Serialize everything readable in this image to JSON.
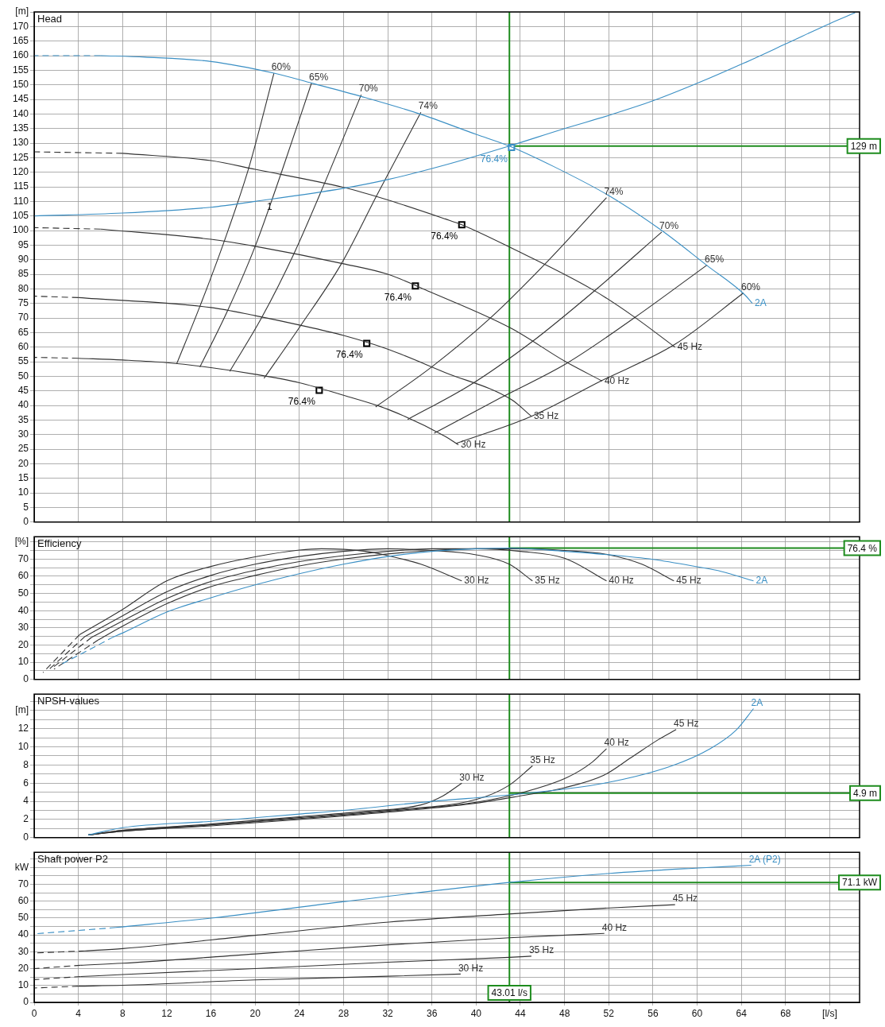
{
  "chart_data": [
    {
      "type": "line",
      "title": "Head",
      "xlim": [
        0,
        74.7
      ],
      "xticks": [
        0,
        4,
        8,
        12,
        16,
        20,
        24,
        28,
        32,
        36,
        40,
        44,
        48,
        52,
        56,
        60,
        64,
        68,
        72
      ],
      "ylim": [
        0,
        175
      ],
      "yticks": [
        0,
        5,
        10,
        15,
        20,
        25,
        30,
        35,
        40,
        45,
        50,
        55,
        60,
        65,
        70,
        75,
        80,
        85,
        90,
        95,
        100,
        105,
        110,
        115,
        120,
        125,
        130,
        135,
        140,
        145,
        150,
        155,
        160,
        165,
        170,
        {
          "value": 175,
          "label": "[m]"
        }
      ],
      "grid": true,
      "legend": false,
      "tick_labels": "y",
      "marker": "none",
      "series": [
        {
          "name": "2A",
          "color": "#3a8fc4",
          "x": [
            65,
            64.3,
            60.9,
            56.8,
            52,
            47,
            43,
            40,
            34.9,
            29.6,
            25.2,
            21.7,
            16,
            10,
            6
          ],
          "values": [
            75,
            78,
            88,
            100,
            112,
            122,
            129,
            133,
            140,
            146,
            150.5,
            154,
            158,
            159.5,
            160
          ]
        },
        {
          "color": "#3a8fc4",
          "line_style": "dashed",
          "x": [
            6,
            0
          ],
          "values": [
            160,
            160
          ]
        },
        {
          "color": "#3a8fc4",
          "x": [
            0,
            8,
            16,
            20,
            28,
            32,
            37.2,
            43,
            48,
            52,
            56,
            60,
            64.2,
            68,
            72,
            74.3
          ],
          "values": [
            105,
            106,
            108,
            110,
            114.5,
            117.5,
            122.5,
            129,
            135,
            139.5,
            144.5,
            150.5,
            157.4,
            164,
            171,
            174.7
          ]
        },
        {
          "name": "45 Hz",
          "color": "#333333",
          "x": [
            58,
            54.3,
            50.6,
            43.2,
            38.7,
            37.2,
            32,
            28,
            20,
            16,
            8
          ],
          "values": [
            60,
            70.4,
            79.6,
            94,
            102,
            104,
            110.5,
            114.8,
            121,
            124,
            126.5
          ]
        },
        {
          "color": "#333333",
          "line_style": "dashed",
          "x": [
            8,
            0
          ],
          "values": [
            126.5,
            127
          ]
        },
        {
          "name": "40 Hz",
          "color": "#333333",
          "x": [
            51.4,
            48.1,
            43.2,
            35.8,
            32,
            28,
            20,
            16,
            6
          ],
          "values": [
            48.4,
            55,
            66.4,
            79,
            85,
            88.6,
            94.6,
            97,
            100.5
          ]
        },
        {
          "color": "#333333",
          "line_style": "dashed",
          "x": [
            6,
            0
          ],
          "values": [
            100.5,
            101
          ]
        },
        {
          "name": "35 Hz",
          "color": "#333333",
          "x": [
            45,
            43.2,
            37.2,
            32,
            28,
            24,
            20,
            16,
            4
          ],
          "values": [
            36.3,
            42,
            51.3,
            59.3,
            64,
            67.6,
            70.8,
            73.6,
            77
          ]
        },
        {
          "color": "#333333",
          "line_style": "dashed",
          "x": [
            4,
            0
          ],
          "values": [
            77,
            77.5
          ]
        },
        {
          "name": "30 Hz",
          "color": "#333333",
          "x": [
            38.4,
            37.2,
            32,
            28,
            24,
            20,
            16,
            12,
            8,
            4
          ],
          "values": [
            26.5,
            29.4,
            38.7,
            43.5,
            47.8,
            50.7,
            53,
            54.7,
            55.6,
            56.2
          ]
        },
        {
          "color": "#333333",
          "line_style": "dashed",
          "x": [
            4,
            0
          ],
          "values": [
            56.2,
            56.5
          ]
        },
        {
          "name": "60%",
          "color": "#333333",
          "x": [
            21.7,
            19.5,
            17.2,
            15,
            12.9
          ],
          "values": [
            154,
            122.5,
            96.3,
            74,
            54.3
          ]
        },
        {
          "name": "65%",
          "color": "#333333",
          "x": [
            25.1,
            22.4,
            20,
            17.5,
            15
          ],
          "values": [
            150.6,
            120.2,
            94.6,
            72.5,
            53.2
          ]
        },
        {
          "name": "70%",
          "color": "#333333",
          "x": [
            29.6,
            26.4,
            23.5,
            20.6,
            17.7
          ],
          "values": [
            146.6,
            117.3,
            92,
            70.2,
            51.7
          ]
        },
        {
          "name": "74%",
          "color": "#333333",
          "x": [
            35,
            31,
            27.8,
            24.1,
            20.8
          ],
          "values": [
            140.6,
            112,
            88.6,
            67.3,
            49.3
          ]
        },
        {
          "name": "74%",
          "color": "#333333",
          "x": [
            51.8,
            46.3,
            41.2,
            36,
            30.9
          ],
          "values": [
            111.3,
            88.8,
            69.7,
            53.3,
            39.5
          ]
        },
        {
          "name": "70%",
          "color": "#333333",
          "x": [
            56.8,
            50.7,
            45,
            39.5,
            33.8
          ],
          "values": [
            99.5,
            79.3,
            61.7,
            47.1,
            35.2
          ]
        },
        {
          "name": "65%",
          "color": "#333333",
          "x": [
            60.9,
            54.4,
            48.3,
            42.2,
            36.2
          ],
          "values": [
            88.2,
            70.3,
            54.7,
            42.6,
            30.5
          ]
        },
        {
          "name": "60%",
          "color": "#333333",
          "x": [
            64.2,
            58,
            51.3,
            45,
            38.2
          ],
          "values": [
            78.6,
            61,
            48.4,
            36.3,
            27
          ]
        },
        {
          "type": "scatter",
          "marker": "square",
          "color": "#000000",
          "x": [
            38.7,
            34.5,
            30.1,
            25.8
          ],
          "values": [
            102,
            81,
            61.3,
            45.2
          ]
        },
        {
          "type": "scatter",
          "marker": "square",
          "color": "#3a8fc4",
          "x": [
            43.2
          ],
          "values": [
            128.5
          ]
        }
      ],
      "annotations": [
        {
          "text": "76.4%",
          "x": 38.7,
          "y": 102
        },
        {
          "text": "76.4%",
          "x": 34.5,
          "y": 81
        },
        {
          "text": "76.4%",
          "x": 30.1,
          "y": 61.3
        },
        {
          "text": "76.4%",
          "x": 25.8,
          "y": 45.2
        },
        {
          "text": "76.4%",
          "x": 43.2,
          "y": 128.5
        },
        {
          "text": "1",
          "x": 21.9,
          "y": 112
        }
      ],
      "ref_lines": [
        {
          "axis": "x",
          "value": 43.01,
          "color": "#1e8c1e"
        },
        {
          "axis": "y",
          "value": 129,
          "label": "129 m",
          "color": "#1e8c1e"
        }
      ]
    },
    {
      "type": "line",
      "title": "Efficiency",
      "xlim": [
        0,
        74.7
      ],
      "xticks": [
        0,
        4,
        8,
        12,
        16,
        20,
        24,
        28,
        32,
        36,
        40,
        44,
        48,
        52,
        56,
        60,
        64,
        68,
        72
      ],
      "ylim": [
        0,
        83
      ],
      "yticks": [
        0,
        {
          "value": 5,
          "label": null
        },
        10,
        {
          "value": 15,
          "label": null
        },
        20,
        {
          "value": 25,
          "label": null
        },
        30,
        {
          "value": 35,
          "label": null
        },
        40,
        {
          "value": 45,
          "label": null
        },
        50,
        {
          "value": 55,
          "label": null
        },
        60,
        {
          "value": 65,
          "label": null
        },
        70,
        {
          "value": 75,
          "label": null
        },
        {
          "value": 80,
          "label": "[%]"
        }
      ],
      "grid": true,
      "legend": false,
      "tick_labels": "y",
      "marker": "none",
      "series": [
        {
          "name": "2A",
          "color": "#3a8fc4",
          "x": [
            65.1,
            62.2,
            60,
            56,
            52,
            48,
            43,
            40,
            36,
            32,
            28,
            24,
            20,
            16,
            12,
            8,
            7.2
          ],
          "values": [
            57.3,
            62.8,
            65.5,
            69.8,
            72.5,
            74.5,
            76.4,
            76,
            74.5,
            71.5,
            67,
            61.5,
            55,
            47.5,
            39.2,
            27,
            24.8
          ]
        },
        {
          "color": "#3a8fc4",
          "line_style": "dashed",
          "x": [
            7.2,
            2.5
          ],
          "values": [
            24.8,
            9
          ]
        },
        {
          "name": "45 Hz",
          "color": "#333333",
          "x": [
            57.9,
            55,
            52,
            48,
            44,
            40,
            36,
            32,
            28,
            24,
            20,
            16,
            12,
            8,
            5.8
          ],
          "values": [
            57.3,
            67,
            72.5,
            75,
            76,
            76,
            75,
            73,
            70,
            66,
            60.5,
            54,
            44,
            31,
            23
          ]
        },
        {
          "color": "#333333",
          "line_style": "dashed",
          "x": [
            5.8,
            1.8
          ],
          "values": [
            23,
            6
          ]
        },
        {
          "name": "40 Hz",
          "color": "#333333",
          "x": [
            51.8,
            48,
            44,
            40,
            36,
            32,
            28,
            24,
            20,
            16,
            12,
            8,
            5.2
          ],
          "values": [
            57.3,
            70.5,
            74.5,
            76,
            76,
            74.5,
            72,
            68.5,
            63.5,
            57,
            47,
            34,
            24.5
          ]
        },
        {
          "color": "#333333",
          "line_style": "dashed",
          "x": [
            5.2,
            1.5
          ],
          "values": [
            24.5,
            6
          ]
        },
        {
          "name": "35 Hz",
          "color": "#333333",
          "x": [
            45.1,
            43,
            40,
            36,
            32,
            28,
            24,
            20,
            16,
            12,
            8,
            4.6
          ],
          "values": [
            57.3,
            67,
            72.5,
            75,
            76,
            74.5,
            71.5,
            67,
            60.5,
            51,
            37,
            25
          ]
        },
        {
          "color": "#333333",
          "line_style": "dashed",
          "x": [
            4.6,
            1.2
          ],
          "values": [
            25,
            5
          ]
        },
        {
          "name": "30 Hz",
          "color": "#333333",
          "x": [
            38.7,
            35,
            32,
            30,
            26,
            24,
            20,
            16,
            12,
            8,
            4.1
          ],
          "values": [
            57.3,
            67,
            72,
            74.5,
            76,
            75.2,
            71.3,
            65.7,
            57.3,
            40.7,
            26
          ]
        },
        {
          "color": "#333333",
          "line_style": "dashed",
          "x": [
            4.1,
            0.8
          ],
          "values": [
            26,
            4
          ]
        }
      ],
      "ref_lines": [
        {
          "axis": "x",
          "value": 43.01,
          "color": "#1e8c1e"
        },
        {
          "axis": "y",
          "value": 76.4,
          "label": "76.4 %",
          "color": "#1e8c1e"
        }
      ]
    },
    {
      "type": "line",
      "title": "NPSH-values",
      "xlim": [
        0,
        74.7
      ],
      "xticks": [
        0,
        4,
        8,
        12,
        16,
        20,
        24,
        28,
        32,
        36,
        40,
        44,
        48,
        52,
        56,
        60,
        64,
        68,
        72
      ],
      "ylim": [
        0,
        15.8
      ],
      "yticks": [
        0,
        {
          "value": 1,
          "label": null
        },
        2,
        {
          "value": 3,
          "label": null
        },
        4,
        {
          "value": 5,
          "label": null
        },
        6,
        {
          "value": 7,
          "label": null
        },
        8,
        {
          "value": 9,
          "label": null
        },
        10,
        {
          "value": 11,
          "label": null
        },
        12,
        {
          "value": 13,
          "label": null
        },
        {
          "value": 14,
          "label": "[m]"
        },
        {
          "value": 15,
          "label": null
        }
      ],
      "grid": true,
      "legend": false,
      "tick_labels": "y",
      "marker": "none",
      "series": [
        {
          "name": "2A",
          "color": "#3a8fc4",
          "x": [
            65.1,
            63.5,
            61.2,
            57.7,
            51.6,
            43,
            36,
            28,
            24,
            16,
            8,
            4.9
          ],
          "values": [
            14.2,
            11.8,
            9.8,
            7.9,
            6,
            4.7,
            4,
            3,
            2.6,
            1.8,
            1.1,
            0.3
          ]
        },
        {
          "name": "45 Hz",
          "color": "#333333",
          "x": [
            58.1,
            56.5,
            54,
            51.6,
            48,
            44,
            40,
            32,
            24,
            16,
            8,
            4.9
          ],
          "values": [
            11.9,
            10.8,
            8.8,
            6.9,
            5.5,
            4.6,
            3.8,
            2.8,
            2,
            1.3,
            0.7,
            0.3
          ]
        },
        {
          "name": "40 Hz",
          "color": "#333333",
          "x": [
            51.8,
            50.5,
            48.2,
            44,
            40,
            32,
            24,
            16,
            8,
            4.9
          ],
          "values": [
            9.8,
            8.3,
            6.6,
            4.9,
            3.9,
            2.9,
            2.1,
            1.4,
            0.7,
            0.3
          ]
        },
        {
          "name": "35 Hz",
          "color": "#333333",
          "x": [
            45.1,
            42.9,
            40,
            32,
            24,
            16,
            8,
            4.9
          ],
          "values": [
            7.9,
            5.7,
            4.2,
            3,
            2.2,
            1.4,
            0.8,
            0.3
          ]
        },
        {
          "name": "30 Hz",
          "color": "#333333",
          "x": [
            38.7,
            37,
            35,
            30,
            24,
            16,
            8,
            4.9
          ],
          "values": [
            6,
            4.6,
            3.6,
            2.9,
            2.3,
            1.5,
            0.8,
            0.3
          ]
        }
      ],
      "ref_lines": [
        {
          "axis": "x",
          "value": 43.01,
          "color": "#1e8c1e"
        },
        {
          "axis": "y",
          "value": 4.9,
          "label": "4.9 m",
          "color": "#1e8c1e"
        }
      ]
    },
    {
      "type": "line",
      "title": "Shaft power P2",
      "xlim": [
        0,
        74.7
      ],
      "xticks": [
        0,
        4,
        8,
        12,
        16,
        20,
        24,
        28,
        32,
        36,
        40,
        44,
        48,
        52,
        56,
        60,
        64,
        68,
        {
          "value": 72,
          "label": "[l/s]"
        }
      ],
      "ylim": [
        0,
        89
      ],
      "yticks": [
        0,
        {
          "value": 5,
          "label": null
        },
        10,
        {
          "value": 15,
          "label": null
        },
        20,
        {
          "value": 25,
          "label": null
        },
        30,
        {
          "value": 35,
          "label": null
        },
        40,
        {
          "value": 45,
          "label": null
        },
        50,
        {
          "value": 55,
          "label": null
        },
        60,
        {
          "value": 65,
          "label": null
        },
        70,
        {
          "value": 75,
          "label": null
        },
        {
          "value": 80,
          "label": "kW"
        },
        {
          "value": 85,
          "label": null
        }
      ],
      "grid": true,
      "legend": false,
      "marker": "none",
      "series": [
        {
          "name": "2A (P2)",
          "color": "#3a8fc4",
          "x": [
            64.9,
            60.1,
            52.1,
            43,
            28.1,
            16.2,
            7.4
          ],
          "values": [
            81.3,
            79.7,
            76.5,
            71.1,
            59.8,
            50.1,
            44.4
          ]
        },
        {
          "color": "#3a8fc4",
          "line_style": "dashed",
          "x": [
            7.4,
            0
          ],
          "values": [
            44.4,
            40.6
          ]
        },
        {
          "name": "45 Hz",
          "color": "#333333",
          "x": [
            58,
            52.1,
            42.9,
            32.1,
            20.2,
            8,
            4.6
          ],
          "values": [
            57.9,
            56,
            52.4,
            47.6,
            39.9,
            31.9,
            30.5
          ]
        },
        {
          "color": "#333333",
          "line_style": "dashed",
          "x": [
            4.6,
            0
          ],
          "values": [
            30.5,
            29.3
          ]
        },
        {
          "name": "40 Hz",
          "color": "#333333",
          "x": [
            51.6,
            43,
            32,
            20,
            8,
            4.2
          ],
          "values": [
            40.9,
            38.3,
            34.1,
            28.7,
            23.2,
            22
          ]
        },
        {
          "color": "#333333",
          "line_style": "dashed",
          "x": [
            4.2,
            0
          ],
          "values": [
            22,
            20
          ]
        },
        {
          "name": "35 Hz",
          "color": "#333333",
          "x": [
            45,
            43,
            32,
            20,
            8,
            4.2
          ],
          "values": [
            27.4,
            26.7,
            23.8,
            20,
            16.5,
            15.3
          ]
        },
        {
          "color": "#333333",
          "line_style": "dashed",
          "x": [
            4.2,
            0
          ],
          "values": [
            15.3,
            13.5
          ]
        },
        {
          "name": "30 Hz",
          "color": "#333333",
          "x": [
            38.6,
            32,
            20,
            8,
            4
          ],
          "values": [
            16.8,
            15.5,
            13.3,
            10.1,
            9.6
          ]
        },
        {
          "color": "#333333",
          "line_style": "dashed",
          "x": [
            4,
            0
          ],
          "values": [
            9.6,
            8.5
          ]
        }
      ],
      "ref_lines": [
        {
          "axis": "x",
          "value": 43.01,
          "label": "43.01 l/s",
          "color": "#1e8c1e"
        },
        {
          "axis": "y",
          "value": 71.1,
          "label": "71.1 kW",
          "color": "#1e8c1e"
        }
      ]
    }
  ]
}
